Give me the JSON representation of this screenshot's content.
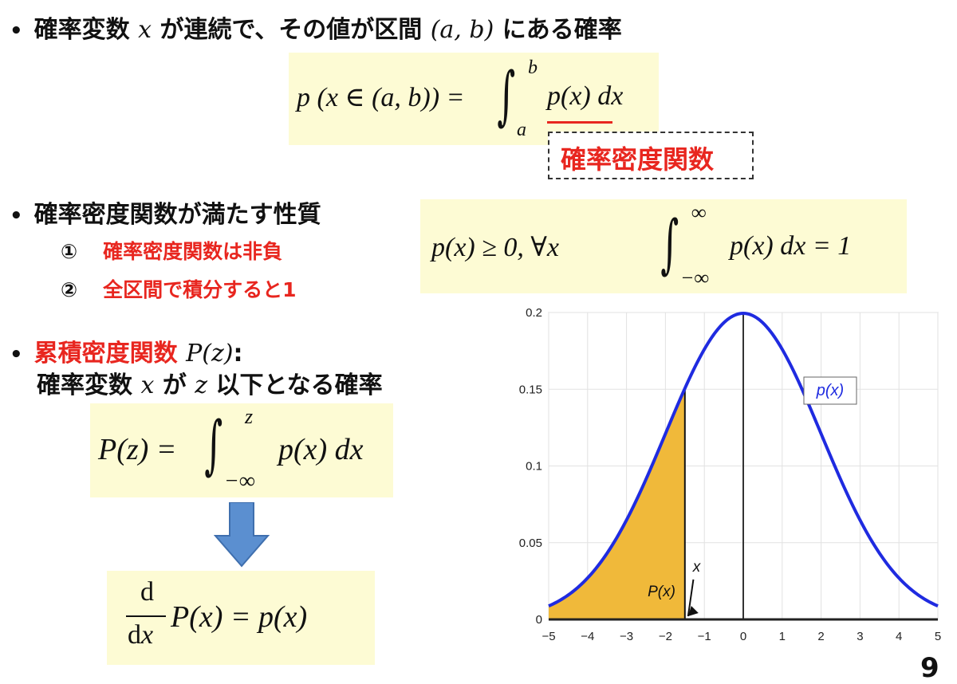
{
  "bullets": {
    "b1": {
      "pre": "確率変数 ",
      "var": "x",
      "post": " が連続で、その値が区間 ",
      "interval": "(a, b)",
      "post2": " にある確率"
    },
    "b2": {
      "text": "確率密度関数が満たす性質"
    },
    "b3": {
      "title_red": "累積密度関数 ",
      "func": "P(z)",
      "colon": ":",
      "line2_pre": "確率変数 ",
      "line2_var": "x",
      "line2_mid": " が ",
      "line2_z": "z",
      "line2_post": " 以下となる確率"
    }
  },
  "properties": [
    {
      "num": "①",
      "text": "確率密度関数は非負"
    },
    {
      "num": "②",
      "text": "全区間で積分すると1"
    }
  ],
  "equations": {
    "eq1": {
      "lhs": "p (x ∈ (a, b)) =",
      "upper": "b",
      "lower": "a",
      "integrand": "p(x) dx"
    },
    "pdf_label": "確率密度関数",
    "eq2": {
      "left": "p(x) ≥ 0,  ∀x",
      "upper": "∞",
      "lower": "−∞",
      "integrand": "p(x) dx = 1"
    },
    "eq3": {
      "lhs": "P(z) =",
      "upper": "z",
      "lower": "−∞",
      "integrand": "p(x) dx"
    },
    "eq4": {
      "num": "d",
      "den": "dx",
      "rest": "P(x) = p(x)"
    }
  },
  "colors": {
    "accent_red": "#e8261f",
    "box_yellow": "#fdfbd4",
    "curve_blue": "#1f2be0",
    "fill_orange": "#f0b93a",
    "arrow_blue": "#5b8fd0"
  },
  "chart_data": {
    "type": "area",
    "title": "",
    "xlabel": "",
    "ylabel": "",
    "xlim": [
      -5,
      5
    ],
    "ylim": [
      0,
      0.2
    ],
    "xticks": [
      -5,
      -4,
      -3,
      -2,
      -1,
      0,
      1,
      2,
      3,
      4,
      5
    ],
    "xtick_labels": [
      "−5",
      "−4",
      "−3",
      "−2",
      "−1",
      "0",
      "1",
      "2",
      "3",
      "4",
      "5"
    ],
    "yticks": [
      0,
      0.05,
      0.1,
      0.15,
      0.2
    ],
    "ytick_labels": [
      "0",
      "0.05",
      "0.1",
      "0.15",
      "0.2"
    ],
    "grid": true,
    "legend": "p(x)",
    "legend_position": "upper-right",
    "distribution": {
      "mean": 0,
      "std": 2
    },
    "series": [
      {
        "name": "p(x)",
        "x": [
          -5,
          -4.5,
          -4,
          -3.5,
          -3,
          -2.5,
          -2,
          -1.5,
          -1,
          -0.5,
          0,
          0.5,
          1,
          1.5,
          2,
          2.5,
          3,
          3.5,
          4,
          4.5,
          5
        ],
        "y": [
          0.0088,
          0.0159,
          0.027,
          0.0431,
          0.0648,
          0.0913,
          0.121,
          0.1506,
          0.176,
          0.1933,
          0.1995,
          0.1933,
          0.176,
          0.1506,
          0.121,
          0.0913,
          0.0648,
          0.0431,
          0.027,
          0.0159,
          0.0088
        ]
      }
    ],
    "shaded_until_x": -1.5,
    "annotations": [
      {
        "text": "P(x)",
        "x": -2.1,
        "y": 0.015
      },
      {
        "text": "x",
        "x": -1.2,
        "y": 0.025
      }
    ]
  },
  "page_number": "9"
}
